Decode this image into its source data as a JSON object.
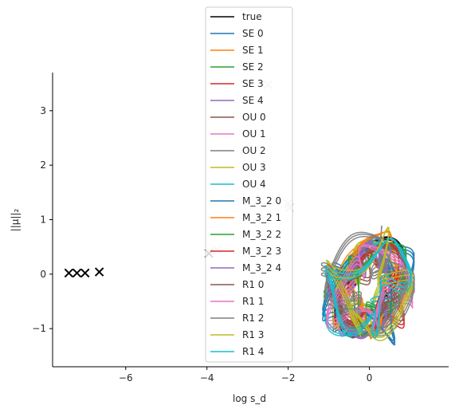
{
  "chart_data": {
    "type": "line",
    "title": "",
    "xlabel": "log s_d",
    "ylabel": "||μ||₂",
    "xlim": [
      -7.8,
      1.95
    ],
    "ylim": [
      -1.7,
      3.7
    ],
    "x_ticks": [
      -6,
      -4,
      -2,
      0
    ],
    "y_ticks": [
      -1,
      0,
      1,
      2,
      3
    ],
    "x_tick_labels": [
      "−6",
      "−4",
      "−2",
      "0"
    ],
    "y_tick_labels": [
      "−1",
      "0",
      "1",
      "2",
      "3"
    ],
    "grid": false,
    "legend_position": "top-center",
    "series": [
      {
        "name": "true",
        "color": "#000000"
      },
      {
        "name": "SE 0",
        "color": "#1f77b4"
      },
      {
        "name": "SE 1",
        "color": "#ff7f0e"
      },
      {
        "name": "SE 2",
        "color": "#2ca02c"
      },
      {
        "name": "SE 3",
        "color": "#d62728"
      },
      {
        "name": "SE 4",
        "color": "#9467bd"
      },
      {
        "name": "OU 0",
        "color": "#8c564b"
      },
      {
        "name": "OU 1",
        "color": "#e377c2"
      },
      {
        "name": "OU 2",
        "color": "#7f7f7f"
      },
      {
        "name": "OU 3",
        "color": "#bcbd22"
      },
      {
        "name": "OU 4",
        "color": "#17becf"
      },
      {
        "name": "M_3_2 0",
        "color": "#1f77b4"
      },
      {
        "name": "M_3_2 1",
        "color": "#ff7f0e"
      },
      {
        "name": "M_3_2 2",
        "color": "#2ca02c"
      },
      {
        "name": "M_3_2 3",
        "color": "#d62728"
      },
      {
        "name": "M_3_2 4",
        "color": "#9467bd"
      },
      {
        "name": "R1 0",
        "color": "#8c564b"
      },
      {
        "name": "R1 1",
        "color": "#e377c2"
      },
      {
        "name": "R1 2",
        "color": "#7f7f7f"
      },
      {
        "name": "R1 3",
        "color": "#bcbd22"
      },
      {
        "name": "R1 4",
        "color": "#17becf"
      }
    ],
    "markers": [
      {
        "x": -7.4,
        "y": 0.02,
        "color": "#000000"
      },
      {
        "x": -7.2,
        "y": 0.02,
        "color": "#000000"
      },
      {
        "x": -7.0,
        "y": 0.02,
        "color": "#000000"
      },
      {
        "x": -6.65,
        "y": 0.04,
        "color": "#000000"
      },
      {
        "x": -3.95,
        "y": 0.38,
        "color": "#000000"
      },
      {
        "x": -3.75,
        "y": 0.45,
        "color": "#c8c8c8"
      },
      {
        "x": -2.5,
        "y": 3.48,
        "color": "#c8c8c8"
      },
      {
        "x": -2.0,
        "y": 1.29,
        "color": "#c8c8c8"
      },
      {
        "x": -1.97,
        "y": 1.22,
        "color": "#c8c8c8"
      }
    ]
  }
}
